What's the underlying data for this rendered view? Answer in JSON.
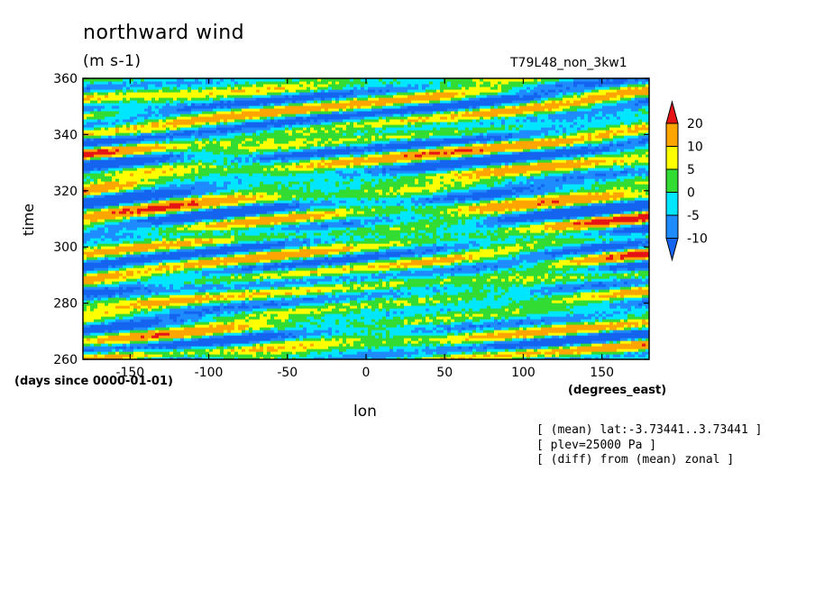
{
  "header": {
    "title": "northward wind",
    "units": "(m s-1)",
    "run_name": "T79L48_non_3kw1"
  },
  "notes": [
    "[ (mean) lat:-3.73441..3.73441 ]",
    "[ plev=25000 Pa ]",
    "[ (diff) from (mean) zonal ]"
  ],
  "chart_data": {
    "type": "heatmap",
    "title": "northward wind",
    "xlabel": "lon",
    "ylabel": "time",
    "x_units": "(degrees_east)",
    "y_units": "(days since 0000-01-01)",
    "xlim": [
      -180,
      180
    ],
    "ylim": [
      260,
      360
    ],
    "x_ticks": [
      -150,
      -100,
      -50,
      0,
      50,
      100,
      150
    ],
    "y_ticks": [
      260,
      280,
      300,
      320,
      340,
      360
    ],
    "colorbar": {
      "levels": [
        -10,
        -5,
        0,
        5,
        10,
        20
      ],
      "colors": [
        "#1464f0",
        "#1e8cff",
        "#00e6ff",
        "#32dc32",
        "#ffff00",
        "#ffa500",
        "#e61414"
      ]
    }
  }
}
